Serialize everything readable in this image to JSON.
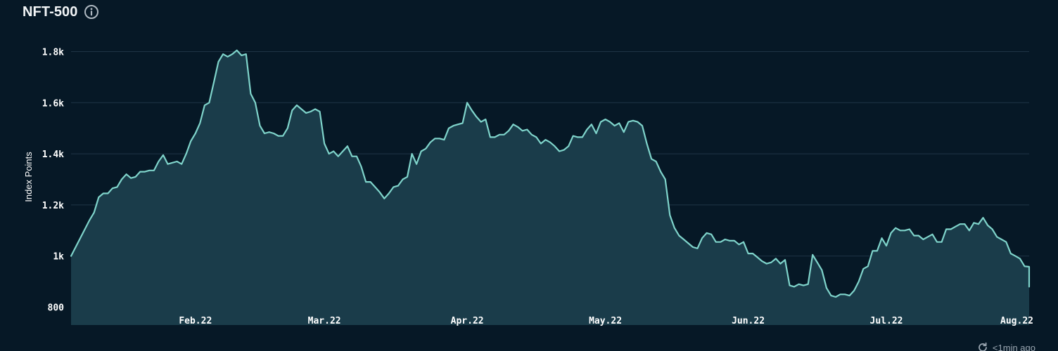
{
  "header": {
    "title": "NFT-500",
    "info_icon": "info-circle-icon"
  },
  "footer": {
    "updated_text": "<1min ago",
    "refresh_icon": "refresh-icon"
  },
  "colors": {
    "background": "#061826",
    "line": "#7fd4cb",
    "area_fill": "#1b3e4c",
    "grid": "#1f3446"
  },
  "chart_data": {
    "type": "area",
    "title": "NFT-500",
    "ylabel": "Index Points",
    "xlabel": "",
    "ylim": [
      730,
      1870
    ],
    "yticks": [
      800,
      1000,
      1200,
      1400,
      1600,
      1800
    ],
    "ytick_labels": [
      "800",
      "1k",
      "1.2k",
      "1.4k",
      "1.6k",
      "1.8k"
    ],
    "xticks": [
      {
        "label": "Feb.22",
        "date": "2022-02-01"
      },
      {
        "label": "Mar.22",
        "date": "2022-03-01"
      },
      {
        "label": "Apr.22",
        "date": "2022-04-01"
      },
      {
        "label": "May.22",
        "date": "2022-05-01"
      },
      {
        "label": "Jun.22",
        "date": "2022-06-01"
      },
      {
        "label": "Jul.22",
        "date": "2022-07-01"
      },
      {
        "label": "Aug.22",
        "date": "2022-08-01"
      }
    ],
    "xlim": [
      "2022-01-05",
      "2022-08-01"
    ],
    "grid": true,
    "series": [
      {
        "values": [
          [
            "2022-01-05",
            1000
          ],
          [
            "2022-01-07",
            1070
          ],
          [
            "2022-01-09",
            1140
          ],
          [
            "2022-01-10",
            1170
          ],
          [
            "2022-01-11",
            1230
          ],
          [
            "2022-01-12",
            1245
          ],
          [
            "2022-01-13",
            1245
          ],
          [
            "2022-01-14",
            1265
          ],
          [
            "2022-01-15",
            1270
          ],
          [
            "2022-01-16",
            1300
          ],
          [
            "2022-01-17",
            1320
          ],
          [
            "2022-01-18",
            1305
          ],
          [
            "2022-01-19",
            1310
          ],
          [
            "2022-01-20",
            1330
          ],
          [
            "2022-01-21",
            1330
          ],
          [
            "2022-01-22",
            1335
          ],
          [
            "2022-01-23",
            1335
          ],
          [
            "2022-01-24",
            1370
          ],
          [
            "2022-01-25",
            1395
          ],
          [
            "2022-01-26",
            1360
          ],
          [
            "2022-01-27",
            1365
          ],
          [
            "2022-01-28",
            1370
          ],
          [
            "2022-01-29",
            1360
          ],
          [
            "2022-01-30",
            1400
          ],
          [
            "2022-01-31",
            1450
          ],
          [
            "2022-02-01",
            1480
          ],
          [
            "2022-02-02",
            1520
          ],
          [
            "2022-02-03",
            1590
          ],
          [
            "2022-02-04",
            1600
          ],
          [
            "2022-02-05",
            1680
          ],
          [
            "2022-02-06",
            1760
          ],
          [
            "2022-02-07",
            1790
          ],
          [
            "2022-02-08",
            1780
          ],
          [
            "2022-02-09",
            1790
          ],
          [
            "2022-02-10",
            1805
          ],
          [
            "2022-02-11",
            1785
          ],
          [
            "2022-02-12",
            1790
          ],
          [
            "2022-02-13",
            1635
          ],
          [
            "2022-02-14",
            1600
          ],
          [
            "2022-02-15",
            1510
          ],
          [
            "2022-02-16",
            1480
          ],
          [
            "2022-02-17",
            1485
          ],
          [
            "2022-02-18",
            1480
          ],
          [
            "2022-02-19",
            1470
          ],
          [
            "2022-02-20",
            1470
          ],
          [
            "2022-02-21",
            1500
          ],
          [
            "2022-02-22",
            1570
          ],
          [
            "2022-02-23",
            1590
          ],
          [
            "2022-02-24",
            1575
          ],
          [
            "2022-02-25",
            1560
          ],
          [
            "2022-02-26",
            1565
          ],
          [
            "2022-02-27",
            1575
          ],
          [
            "2022-02-28",
            1565
          ],
          [
            "2022-03-01",
            1440
          ],
          [
            "2022-03-02",
            1400
          ],
          [
            "2022-03-03",
            1410
          ],
          [
            "2022-03-04",
            1390
          ],
          [
            "2022-03-05",
            1410
          ],
          [
            "2022-03-06",
            1430
          ],
          [
            "2022-03-07",
            1390
          ],
          [
            "2022-03-08",
            1390
          ],
          [
            "2022-03-09",
            1350
          ],
          [
            "2022-03-10",
            1290
          ],
          [
            "2022-03-11",
            1290
          ],
          [
            "2022-03-12",
            1270
          ],
          [
            "2022-03-13",
            1250
          ],
          [
            "2022-03-14",
            1225
          ],
          [
            "2022-03-15",
            1245
          ],
          [
            "2022-03-16",
            1270
          ],
          [
            "2022-03-17",
            1275
          ],
          [
            "2022-03-18",
            1300
          ],
          [
            "2022-03-19",
            1310
          ],
          [
            "2022-03-20",
            1400
          ],
          [
            "2022-03-21",
            1360
          ],
          [
            "2022-03-22",
            1410
          ],
          [
            "2022-03-23",
            1420
          ],
          [
            "2022-03-24",
            1445
          ],
          [
            "2022-03-25",
            1460
          ],
          [
            "2022-03-26",
            1460
          ],
          [
            "2022-03-27",
            1455
          ],
          [
            "2022-03-28",
            1500
          ],
          [
            "2022-03-29",
            1510
          ],
          [
            "2022-03-30",
            1515
          ],
          [
            "2022-03-31",
            1520
          ],
          [
            "2022-04-01",
            1600
          ],
          [
            "2022-04-02",
            1570
          ],
          [
            "2022-04-03",
            1545
          ],
          [
            "2022-04-04",
            1525
          ],
          [
            "2022-04-05",
            1535
          ],
          [
            "2022-04-06",
            1465
          ],
          [
            "2022-04-07",
            1465
          ],
          [
            "2022-04-08",
            1475
          ],
          [
            "2022-04-09",
            1475
          ],
          [
            "2022-04-10",
            1490
          ],
          [
            "2022-04-11",
            1515
          ],
          [
            "2022-04-12",
            1505
          ],
          [
            "2022-04-13",
            1490
          ],
          [
            "2022-04-14",
            1495
          ],
          [
            "2022-04-15",
            1475
          ],
          [
            "2022-04-16",
            1465
          ],
          [
            "2022-04-17",
            1440
          ],
          [
            "2022-04-18",
            1455
          ],
          [
            "2022-04-19",
            1445
          ],
          [
            "2022-04-20",
            1430
          ],
          [
            "2022-04-21",
            1410
          ],
          [
            "2022-04-22",
            1415
          ],
          [
            "2022-04-23",
            1430
          ],
          [
            "2022-04-24",
            1470
          ],
          [
            "2022-04-25",
            1465
          ],
          [
            "2022-04-26",
            1465
          ],
          [
            "2022-04-27",
            1495
          ],
          [
            "2022-04-28",
            1515
          ],
          [
            "2022-04-29",
            1480
          ],
          [
            "2022-04-30",
            1525
          ],
          [
            "2022-05-01",
            1535
          ],
          [
            "2022-05-02",
            1525
          ],
          [
            "2022-05-03",
            1510
          ],
          [
            "2022-05-04",
            1520
          ],
          [
            "2022-05-05",
            1485
          ],
          [
            "2022-05-06",
            1525
          ],
          [
            "2022-05-07",
            1530
          ],
          [
            "2022-05-08",
            1525
          ],
          [
            "2022-05-09",
            1510
          ],
          [
            "2022-05-10",
            1440
          ],
          [
            "2022-05-11",
            1380
          ],
          [
            "2022-05-12",
            1370
          ],
          [
            "2022-05-13",
            1330
          ],
          [
            "2022-05-14",
            1300
          ],
          [
            "2022-05-15",
            1160
          ],
          [
            "2022-05-16",
            1110
          ],
          [
            "2022-05-17",
            1080
          ],
          [
            "2022-05-18",
            1065
          ],
          [
            "2022-05-19",
            1050
          ],
          [
            "2022-05-20",
            1035
          ],
          [
            "2022-05-21",
            1030
          ],
          [
            "2022-05-22",
            1070
          ],
          [
            "2022-05-23",
            1090
          ],
          [
            "2022-05-24",
            1085
          ],
          [
            "2022-05-25",
            1055
          ],
          [
            "2022-05-26",
            1055
          ],
          [
            "2022-05-27",
            1065
          ],
          [
            "2022-05-28",
            1060
          ],
          [
            "2022-05-29",
            1060
          ],
          [
            "2022-05-30",
            1045
          ],
          [
            "2022-05-31",
            1055
          ],
          [
            "2022-06-01",
            1010
          ],
          [
            "2022-06-02",
            1010
          ],
          [
            "2022-06-03",
            995
          ],
          [
            "2022-06-04",
            980
          ],
          [
            "2022-06-05",
            970
          ],
          [
            "2022-06-06",
            975
          ],
          [
            "2022-06-07",
            990
          ],
          [
            "2022-06-08",
            970
          ],
          [
            "2022-06-09",
            985
          ],
          [
            "2022-06-10",
            885
          ],
          [
            "2022-06-11",
            880
          ],
          [
            "2022-06-12",
            890
          ],
          [
            "2022-06-13",
            885
          ],
          [
            "2022-06-14",
            890
          ],
          [
            "2022-06-15",
            1005
          ],
          [
            "2022-06-16",
            975
          ],
          [
            "2022-06-17",
            945
          ],
          [
            "2022-06-18",
            875
          ],
          [
            "2022-06-19",
            845
          ],
          [
            "2022-06-20",
            840
          ],
          [
            "2022-06-21",
            850
          ],
          [
            "2022-06-22",
            850
          ],
          [
            "2022-06-23",
            845
          ],
          [
            "2022-06-24",
            865
          ],
          [
            "2022-06-25",
            900
          ],
          [
            "2022-06-26",
            950
          ],
          [
            "2022-06-27",
            960
          ],
          [
            "2022-06-28",
            1020
          ],
          [
            "2022-06-29",
            1020
          ],
          [
            "2022-06-30",
            1070
          ],
          [
            "2022-07-01",
            1040
          ],
          [
            "2022-07-02",
            1090
          ],
          [
            "2022-07-03",
            1110
          ],
          [
            "2022-07-04",
            1100
          ],
          [
            "2022-07-05",
            1100
          ],
          [
            "2022-07-06",
            1105
          ],
          [
            "2022-07-07",
            1080
          ],
          [
            "2022-07-08",
            1080
          ],
          [
            "2022-07-09",
            1065
          ],
          [
            "2022-07-10",
            1075
          ],
          [
            "2022-07-11",
            1085
          ],
          [
            "2022-07-12",
            1055
          ],
          [
            "2022-07-13",
            1055
          ],
          [
            "2022-07-14",
            1105
          ],
          [
            "2022-07-15",
            1105
          ],
          [
            "2022-07-16",
            1115
          ],
          [
            "2022-07-17",
            1125
          ],
          [
            "2022-07-18",
            1125
          ],
          [
            "2022-07-19",
            1100
          ],
          [
            "2022-07-20",
            1130
          ],
          [
            "2022-07-21",
            1125
          ],
          [
            "2022-07-22",
            1150
          ],
          [
            "2022-07-23",
            1120
          ],
          [
            "2022-07-24",
            1105
          ],
          [
            "2022-07-25",
            1075
          ],
          [
            "2022-07-26",
            1065
          ],
          [
            "2022-07-27",
            1055
          ],
          [
            "2022-07-28",
            1010
          ],
          [
            "2022-07-29",
            1000
          ],
          [
            "2022-07-30",
            990
          ],
          [
            "2022-07-31",
            960
          ],
          [
            "2022-08-01",
            958
          ],
          [
            "2022-08-02",
            948
          ],
          [
            "2022-08-03",
            940
          ],
          [
            "2022-08-04",
            930
          ],
          [
            "2022-08-05",
            928
          ],
          [
            "2022-08-06",
            928
          ],
          [
            "2022-08-07",
            918
          ],
          [
            "2022-08-08",
            918
          ],
          [
            "2022-08-09",
            905
          ],
          [
            "2022-08-10",
            880
          ]
        ]
      }
    ]
  }
}
